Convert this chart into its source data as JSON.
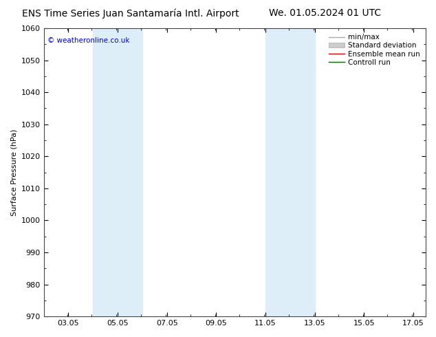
{
  "title_left": "ENS Time Series Juan Santamaría Intl. Airport",
  "title_right": "We. 01.05.2024 01 UTC",
  "ylabel": "Surface Pressure (hPa)",
  "ylim": [
    970,
    1060
  ],
  "yticks": [
    970,
    980,
    990,
    1000,
    1010,
    1020,
    1030,
    1040,
    1050,
    1060
  ],
  "xlim_min": 2.05,
  "xlim_max": 17.55,
  "xtick_labels": [
    "03.05",
    "05.05",
    "07.05",
    "09.05",
    "11.05",
    "13.05",
    "15.05",
    "17.05"
  ],
  "xtick_positions": [
    3.05,
    5.05,
    7.05,
    9.05,
    11.05,
    13.05,
    15.05,
    17.05
  ],
  "shaded_bands": [
    {
      "x_start": 4.05,
      "x_end": 6.05
    },
    {
      "x_start": 11.05,
      "x_end": 13.05
    }
  ],
  "band_color": "#ddeef8",
  "watermark_text": "© weatheronline.co.uk",
  "watermark_color": "#0000cc",
  "bg_color": "#ffffff",
  "spine_color": "#444444",
  "title_fontsize": 10,
  "tick_fontsize": 8,
  "ylabel_fontsize": 8,
  "legend_fontsize": 7.5
}
